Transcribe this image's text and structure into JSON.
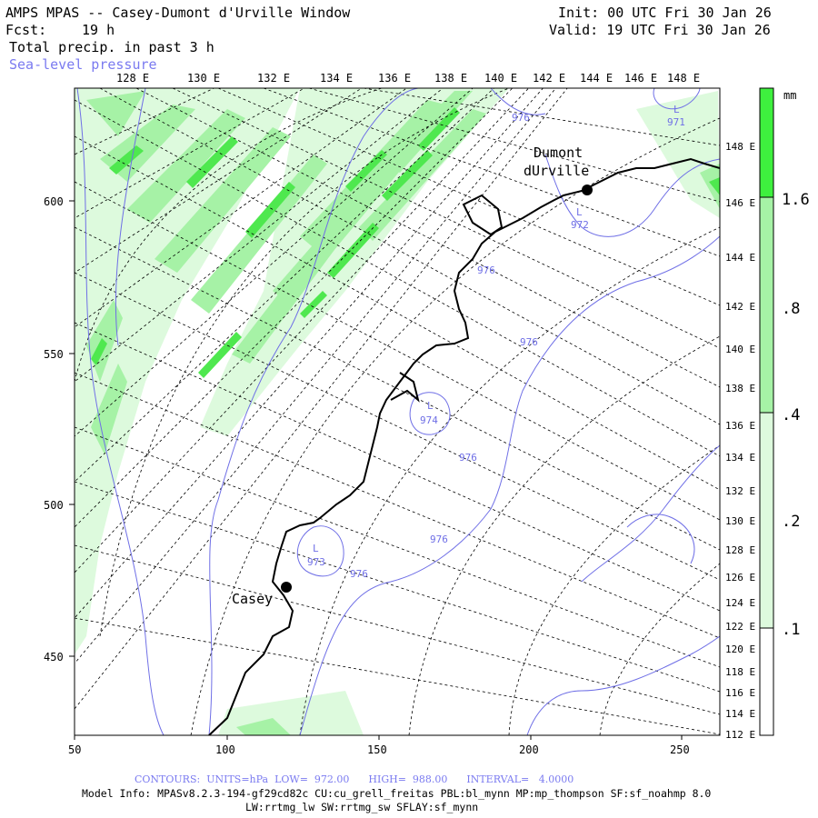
{
  "header": {
    "title": "AMPS MPAS -- Casey-Dumont d'Urville Window",
    "forecast_label": "Fcst:",
    "forecast_value": "19 h",
    "init": "Init: 00 UTC Fri 30 Jan 26",
    "valid": "Valid: 19 UTC Fri 30 Jan 26",
    "field_precip": "Total precip. in past 3 h",
    "field_slp": "Sea-level pressure"
  },
  "map": {
    "top_lon_labels": [
      "128 E",
      "130 E",
      "132 E",
      "134 E",
      "136 E",
      "138 E",
      "140 E",
      "142 E",
      "144 E",
      "146 E",
      "148 E"
    ],
    "right_lon_labels": [
      "148 E",
      "146 E",
      "144 E",
      "142 E",
      "140 E",
      "138 E",
      "136 E",
      "134 E",
      "132 E",
      "130 E",
      "128 E",
      "126 E",
      "124 E",
      "122 E",
      "120 E",
      "118 E",
      "116 E",
      "114 E",
      "112 E"
    ],
    "x_ticks": [
      "50",
      "100",
      "150",
      "200",
      "250"
    ],
    "y_ticks": [
      "600",
      "550",
      "500",
      "450"
    ],
    "stations": [
      {
        "name": "Casey"
      },
      {
        "name_line1": "Dumont",
        "name_line2": "dUrville"
      }
    ],
    "lows": [
      {
        "label": "L",
        "value": "971"
      },
      {
        "label": "L",
        "value": "972"
      },
      {
        "label": "L",
        "value": "974"
      },
      {
        "label": "L",
        "value": "973"
      }
    ],
    "contour_labels": [
      "976",
      "976",
      "976",
      "976",
      "976",
      "976"
    ],
    "colors": {
      "coast": "#000000",
      "slp_contour": "#6f6fe6",
      "graticule": "#000000",
      "precip_light": "#ddfadd",
      "precip_medium": "#a6f2a6",
      "precip_heavy": "#4fe84f"
    }
  },
  "colorbar": {
    "unit": "mm",
    "labels": [
      "1.6",
      ".8",
      ".4",
      ".2",
      ".1"
    ],
    "colors": [
      "#3ef03e",
      "#a6f2a6",
      "#ddfadd"
    ]
  },
  "footer": {
    "contours": "CONTOURS:  UNITS=hPa  LOW=  972.00      HIGH=  988.00      INTERVAL=   4.0000",
    "model_info": "Model Info: MPASv8.2.3-194-gf29cd82c CU:cu_grell_freitas PBL:bl_mynn MP:mp_thompson SF:sf_noahmp 8.0",
    "model_info2": "LW:rrtmg_lw SW:rrtmg_sw SFLAY:sf_mynn"
  }
}
